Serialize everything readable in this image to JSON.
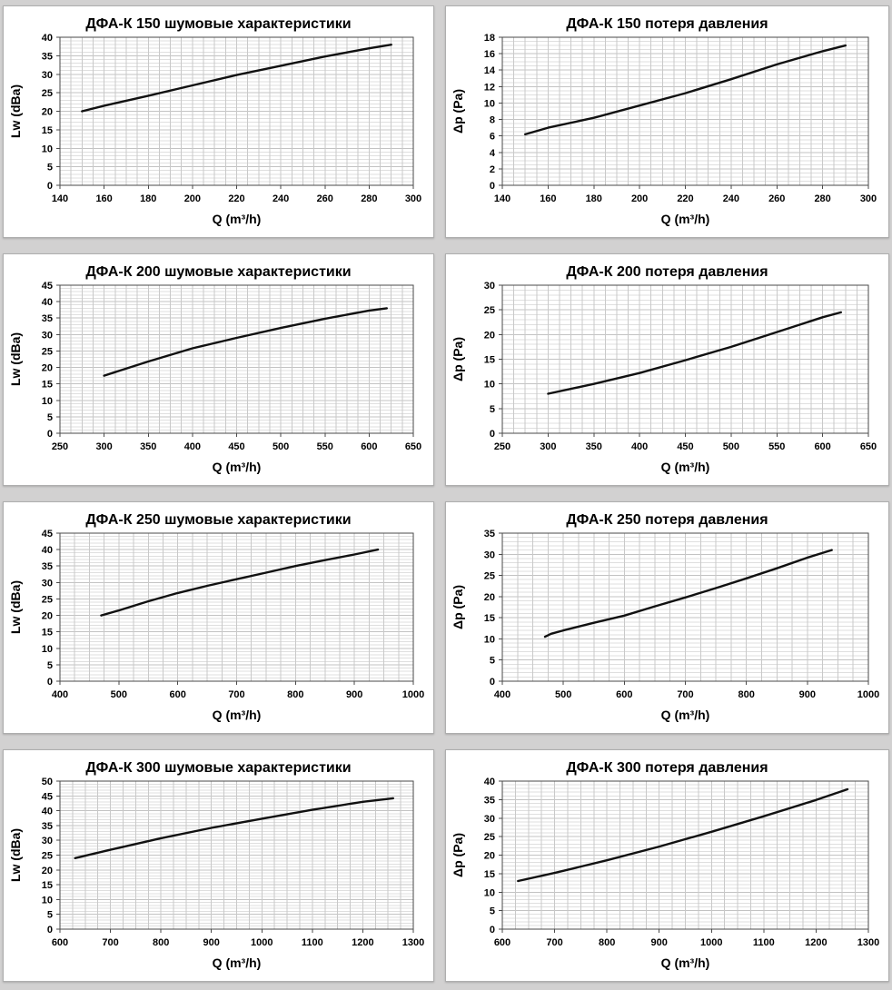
{
  "page": {
    "background": "#d2d1d1",
    "panel_background": "#ffffff",
    "line_color": "#111111",
    "plot_border_color": "#4a4a4a",
    "grid_minor_h_color": "#dfdfdf",
    "grid_major_h_color": "#c3c3c3",
    "grid_vertical_color": "#c9c9c9"
  },
  "chart_data": [
    {
      "type": "line",
      "title": "ДФА-К 150 шумовые характеристики",
      "xlabel": "Q (m³/h)",
      "ylabel": "Lw (dBa)",
      "xlim": [
        140,
        300
      ],
      "xtick": 20,
      "xminor": 5,
      "ylim": [
        0,
        40
      ],
      "ytick": 5,
      "yminor": 1,
      "grid": true,
      "legend": false,
      "series": [
        {
          "name": "Lw",
          "points": [
            [
              150,
              20
            ],
            [
              160,
              21.5
            ],
            [
              180,
              24.2
            ],
            [
              200,
              27
            ],
            [
              220,
              29.8
            ],
            [
              240,
              32.3
            ],
            [
              260,
              34.8
            ],
            [
              280,
              37
            ],
            [
              290,
              38
            ]
          ]
        }
      ]
    },
    {
      "type": "line",
      "title": "ДФА-К 150 потеря давления",
      "xlabel": "Q (m³/h)",
      "ylabel": "Δp (Pa)",
      "xlim": [
        140,
        300
      ],
      "xtick": 20,
      "xminor": 5,
      "ylim": [
        0,
        18
      ],
      "ytick": 2,
      "yminor": 0.5,
      "grid": true,
      "legend": false,
      "series": [
        {
          "name": "dp",
          "points": [
            [
              150,
              6.2
            ],
            [
              160,
              7
            ],
            [
              180,
              8.2
            ],
            [
              200,
              9.7
            ],
            [
              220,
              11.2
            ],
            [
              240,
              12.9
            ],
            [
              260,
              14.7
            ],
            [
              280,
              16.3
            ],
            [
              290,
              17
            ]
          ]
        }
      ]
    },
    {
      "type": "line",
      "title": "ДФА-К 200 шумовые характеристики",
      "xlabel": "Q (m³/h)",
      "ylabel": "Lw (dBa)",
      "xlim": [
        250,
        650
      ],
      "xtick": 50,
      "xminor": 12.5,
      "ylim": [
        0,
        45
      ],
      "ytick": 5,
      "yminor": 1,
      "grid": true,
      "legend": false,
      "series": [
        {
          "name": "Lw",
          "points": [
            [
              300,
              17.5
            ],
            [
              350,
              21.8
            ],
            [
              400,
              25.8
            ],
            [
              450,
              29
            ],
            [
              500,
              32
            ],
            [
              550,
              34.8
            ],
            [
              600,
              37.3
            ],
            [
              620,
              38
            ]
          ]
        }
      ]
    },
    {
      "type": "line",
      "title": "ДФА-К 200 потеря давления",
      "xlabel": "Q (m³/h)",
      "ylabel": "Δp (Pa)",
      "xlim": [
        250,
        650
      ],
      "xtick": 50,
      "xminor": 12.5,
      "ylim": [
        0,
        30
      ],
      "ytick": 5,
      "yminor": 1,
      "grid": true,
      "legend": false,
      "series": [
        {
          "name": "dp",
          "points": [
            [
              300,
              8
            ],
            [
              350,
              10
            ],
            [
              400,
              12.2
            ],
            [
              450,
              14.8
            ],
            [
              500,
              17.5
            ],
            [
              550,
              20.5
            ],
            [
              600,
              23.5
            ],
            [
              620,
              24.5
            ]
          ]
        }
      ]
    },
    {
      "type": "line",
      "title": "ДФА-К 250 шумовые характеристики",
      "xlabel": "Q (m³/h)",
      "ylabel": "Lw (dBa)",
      "xlim": [
        400,
        1000
      ],
      "xtick": 100,
      "xminor": 25,
      "ylim": [
        0,
        45
      ],
      "ytick": 5,
      "yminor": 1,
      "grid": true,
      "legend": false,
      "series": [
        {
          "name": "Lw",
          "points": [
            [
              470,
              20
            ],
            [
              500,
              21.5
            ],
            [
              550,
              24.3
            ],
            [
              600,
              26.8
            ],
            [
              650,
              29
            ],
            [
              700,
              31
            ],
            [
              750,
              33
            ],
            [
              800,
              35
            ],
            [
              850,
              36.8
            ],
            [
              900,
              38.5
            ],
            [
              940,
              40
            ]
          ]
        }
      ]
    },
    {
      "type": "line",
      "title": "ДФА-К 250 потеря давления",
      "xlabel": "Q (m³/h)",
      "ylabel": "Δp (Pa)",
      "xlim": [
        400,
        1000
      ],
      "xtick": 100,
      "xminor": 25,
      "ylim": [
        0,
        35
      ],
      "ytick": 5,
      "yminor": 1,
      "grid": true,
      "legend": false,
      "series": [
        {
          "name": "dp",
          "points": [
            [
              470,
              10.5
            ],
            [
              480,
              11.2
            ],
            [
              500,
              12
            ],
            [
              550,
              13.8
            ],
            [
              600,
              15.5
            ],
            [
              650,
              17.7
            ],
            [
              700,
              19.8
            ],
            [
              750,
              22
            ],
            [
              800,
              24.3
            ],
            [
              850,
              26.7
            ],
            [
              900,
              29.2
            ],
            [
              940,
              31
            ]
          ]
        }
      ]
    },
    {
      "type": "line",
      "title": "ДФА-К 300 шумовые характеристики",
      "xlabel": "Q (m³/h)",
      "ylabel": "Lw (dBa)",
      "xlim": [
        600,
        1300
      ],
      "xtick": 100,
      "xminor": 25,
      "ylim": [
        0,
        50
      ],
      "ytick": 5,
      "yminor": 1,
      "grid": true,
      "legend": false,
      "series": [
        {
          "name": "Lw",
          "points": [
            [
              630,
              24
            ],
            [
              700,
              26.8
            ],
            [
              800,
              30.7
            ],
            [
              900,
              34.2
            ],
            [
              1000,
              37.3
            ],
            [
              1100,
              40.3
            ],
            [
              1200,
              43
            ],
            [
              1260,
              44.2
            ]
          ]
        }
      ]
    },
    {
      "type": "line",
      "title": "ДФА-К 300 потеря давления",
      "xlabel": "Q (m³/h)",
      "ylabel": "Δp (Pa)",
      "xlim": [
        600,
        1300
      ],
      "xtick": 100,
      "xminor": 25,
      "ylim": [
        0,
        40
      ],
      "ytick": 5,
      "yminor": 1,
      "grid": true,
      "legend": false,
      "series": [
        {
          "name": "dp",
          "points": [
            [
              630,
              13
            ],
            [
              700,
              15.2
            ],
            [
              800,
              18.6
            ],
            [
              900,
              22.3
            ],
            [
              1000,
              26.3
            ],
            [
              1100,
              30.5
            ],
            [
              1200,
              34.9
            ],
            [
              1260,
              37.8
            ]
          ]
        }
      ]
    }
  ]
}
